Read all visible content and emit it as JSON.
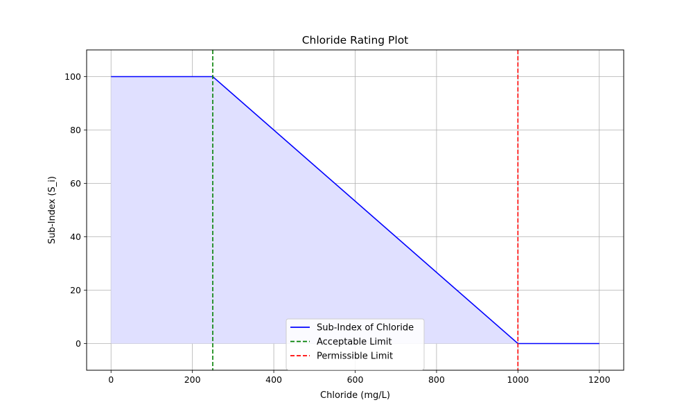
{
  "chart_data": {
    "type": "line",
    "title": "Chloride Rating Plot",
    "xlabel": "Chloride (mg/L)",
    "ylabel": "Sub-Index (S_i)",
    "xlim": [
      -60,
      1260
    ],
    "ylim": [
      -10,
      110
    ],
    "xticks": [
      0,
      200,
      400,
      600,
      800,
      1000,
      1200
    ],
    "yticks": [
      0,
      20,
      40,
      60,
      80,
      100
    ],
    "grid": true,
    "legend_position": "lower center",
    "series": [
      {
        "name": "Sub-Index of Chloride",
        "color": "#0000ff",
        "style": "solid",
        "fill": "#e0e0ff",
        "x": [
          0,
          250,
          1000,
          1200
        ],
        "y": [
          100,
          100,
          0,
          0
        ]
      }
    ],
    "vlines": [
      {
        "name": "Acceptable Limit",
        "x": 250,
        "color": "#008000",
        "style": "dashed"
      },
      {
        "name": "Permissible Limit",
        "x": 1000,
        "color": "#ff0000",
        "style": "dashed"
      }
    ]
  }
}
